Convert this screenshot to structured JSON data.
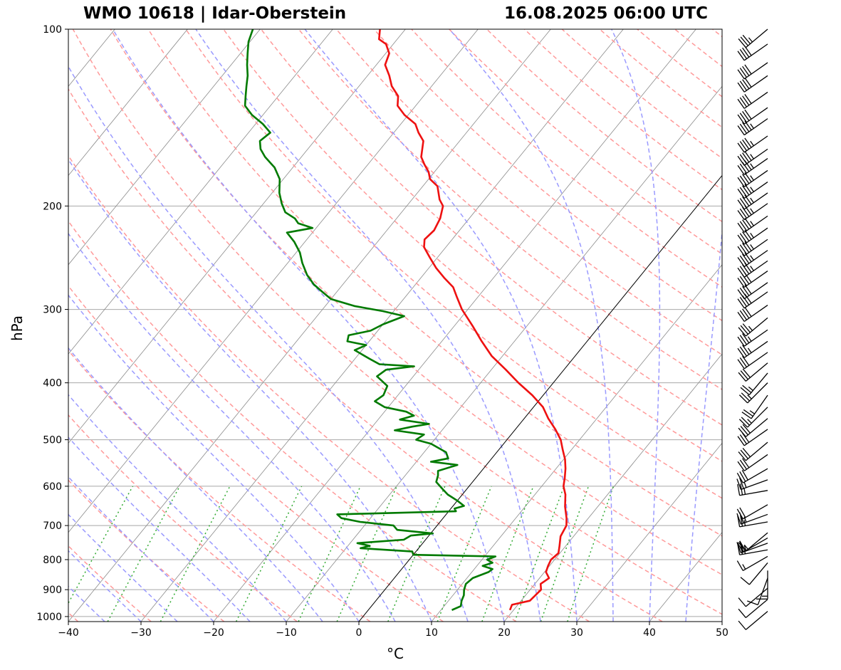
{
  "header": {
    "station": "WMO 10618 | Idar-Oberstein",
    "time": "16.08.2025 06:00 UTC"
  },
  "colors": {
    "temperature": "#ee1111",
    "dewpoint": "#007a00",
    "dry_adiabat": "#ff9a9a",
    "moist_adiabat": "#9a9aff",
    "mixing_ratio": "#33aa33",
    "isotherm": "#8a8a8a",
    "grid": "#a8a8a8"
  },
  "chart_data": {
    "type": "skew-t",
    "xlabel": "°C",
    "ylabel": "hPa",
    "xlim": [
      -40,
      50
    ],
    "ylim": [
      1020,
      100
    ],
    "y_scale": "log",
    "x_ticks": [
      "−40",
      "−30",
      "−20",
      "−10",
      "0",
      "10",
      "20",
      "30",
      "40",
      "50"
    ],
    "y_ticks": [
      "100",
      "200",
      "300",
      "400",
      "500",
      "600",
      "700",
      "800",
      "900",
      "1000"
    ],
    "grid": true,
    "highlighted_isotherm_c": 0,
    "temperature_profile": [
      [
        975,
        19.5
      ],
      [
        955,
        19.2
      ],
      [
        940,
        21.2
      ],
      [
        900,
        21.5
      ],
      [
        880,
        20.8
      ],
      [
        860,
        21.3
      ],
      [
        840,
        20.2
      ],
      [
        820,
        19.8
      ],
      [
        800,
        19.5
      ],
      [
        780,
        19.8
      ],
      [
        760,
        19.2
      ],
      [
        730,
        18.2
      ],
      [
        700,
        17.8
      ],
      [
        680,
        17.0
      ],
      [
        650,
        15.5
      ],
      [
        620,
        14.2
      ],
      [
        600,
        13.0
      ],
      [
        580,
        12.2
      ],
      [
        560,
        11.3
      ],
      [
        540,
        10.2
      ],
      [
        520,
        8.8
      ],
      [
        500,
        7.4
      ],
      [
        480,
        5.5
      ],
      [
        460,
        3.3
      ],
      [
        440,
        1.3
      ],
      [
        420,
        -1.5
      ],
      [
        400,
        -4.8
      ],
      [
        380,
        -8.0
      ],
      [
        360,
        -11.5
      ],
      [
        340,
        -14.5
      ],
      [
        320,
        -17.5
      ],
      [
        300,
        -20.8
      ],
      [
        285,
        -23.0
      ],
      [
        275,
        -24.5
      ],
      [
        265,
        -26.8
      ],
      [
        255,
        -29.0
      ],
      [
        245,
        -31.0
      ],
      [
        235,
        -33.0
      ],
      [
        228,
        -33.8
      ],
      [
        220,
        -33.5
      ],
      [
        210,
        -34.0
      ],
      [
        200,
        -35.0
      ],
      [
        195,
        -36.2
      ],
      [
        185,
        -38.0
      ],
      [
        180,
        -39.8
      ],
      [
        175,
        -40.8
      ],
      [
        170,
        -42.2
      ],
      [
        165,
        -43.5
      ],
      [
        155,
        -45.0
      ],
      [
        150,
        -46.6
      ],
      [
        145,
        -48.0
      ],
      [
        140,
        -50.5
      ],
      [
        135,
        -52.5
      ],
      [
        130,
        -53.5
      ],
      [
        125,
        -55.5
      ],
      [
        120,
        -57.0
      ],
      [
        115,
        -58.8
      ],
      [
        110,
        -59.5
      ],
      [
        106,
        -61.0
      ],
      [
        104,
        -62.5
      ],
      [
        100,
        -63.5
      ]
    ],
    "dewpoint_profile": [
      [
        975,
        11.5
      ],
      [
        960,
        12.3
      ],
      [
        940,
        11.8
      ],
      [
        920,
        11.5
      ],
      [
        900,
        10.9
      ],
      [
        880,
        10.5
      ],
      [
        860,
        10.8
      ],
      [
        840,
        12.3
      ],
      [
        830,
        12.5
      ],
      [
        820,
        10.8
      ],
      [
        810,
        11.8
      ],
      [
        800,
        10.7
      ],
      [
        790,
        11.5
      ],
      [
        785,
        0.0
      ],
      [
        775,
        -0.5
      ],
      [
        765,
        -8.0
      ],
      [
        758,
        -7.0
      ],
      [
        750,
        -9.0
      ],
      [
        740,
        -3.0
      ],
      [
        728,
        -2.5
      ],
      [
        722,
        0.3
      ],
      [
        712,
        -5.0
      ],
      [
        700,
        -6.0
      ],
      [
        690,
        -11.0
      ],
      [
        680,
        -14.0
      ],
      [
        670,
        -15.0
      ],
      [
        662,
        1.0
      ],
      [
        655,
        0.5
      ],
      [
        648,
        1.5
      ],
      [
        635,
        0.0
      ],
      [
        620,
        -2.0
      ],
      [
        605,
        -3.5
      ],
      [
        590,
        -5.0
      ],
      [
        575,
        -5.5
      ],
      [
        565,
        -6.0
      ],
      [
        552,
        -4.0
      ],
      [
        545,
        -8.0
      ],
      [
        538,
        -6.0
      ],
      [
        525,
        -7.0
      ],
      [
        508,
        -10.0
      ],
      [
        500,
        -12.5
      ],
      [
        490,
        -12.0
      ],
      [
        482,
        -16.5
      ],
      [
        475,
        -14.5
      ],
      [
        470,
        -12.5
      ],
      [
        462,
        -17.0
      ],
      [
        455,
        -15.5
      ],
      [
        448,
        -17.0
      ],
      [
        440,
        -20.5
      ],
      [
        430,
        -22.5
      ],
      [
        420,
        -22.0
      ],
      [
        405,
        -22.5
      ],
      [
        390,
        -25.0
      ],
      [
        380,
        -24.5
      ],
      [
        375,
        -21.0
      ],
      [
        372,
        -26.0
      ],
      [
        364,
        -28.0
      ],
      [
        352,
        -31.0
      ],
      [
        345,
        -30.0
      ],
      [
        340,
        -33.0
      ],
      [
        332,
        -33.5
      ],
      [
        326,
        -31.0
      ],
      [
        318,
        -30.0
      ],
      [
        308,
        -28.0
      ],
      [
        302,
        -31.5
      ],
      [
        296,
        -36.0
      ],
      [
        288,
        -40.0
      ],
      [
        280,
        -42.0
      ],
      [
        272,
        -44.0
      ],
      [
        262,
        -46.0
      ],
      [
        250,
        -48.0
      ],
      [
        240,
        -49.5
      ],
      [
        230,
        -51.5
      ],
      [
        222,
        -53.5
      ],
      [
        218,
        -50.5
      ],
      [
        214,
        -53.0
      ],
      [
        210,
        -54.0
      ],
      [
        205,
        -56.0
      ],
      [
        198,
        -57.5
      ],
      [
        190,
        -59.0
      ],
      [
        180,
        -60.5
      ],
      [
        172,
        -62.5
      ],
      [
        165,
        -65.0
      ],
      [
        160,
        -66.5
      ],
      [
        155,
        -67.5
      ],
      [
        150,
        -67.0
      ],
      [
        145,
        -69.0
      ],
      [
        140,
        -71.5
      ],
      [
        135,
        -73.5
      ],
      [
        130,
        -74.5
      ],
      [
        125,
        -75.5
      ],
      [
        120,
        -76.5
      ],
      [
        115,
        -77.8
      ],
      [
        110,
        -79.0
      ],
      [
        105,
        -80.2
      ],
      [
        100,
        -81.0
      ]
    ],
    "wind_barbs": [
      [
        980,
        230,
        10
      ],
      [
        935,
        230,
        10
      ],
      [
        895,
        230,
        10
      ],
      [
        860,
        200,
        12
      ],
      [
        835,
        180,
        15
      ],
      [
        810,
        220,
        12
      ],
      [
        790,
        240,
        15
      ],
      [
        770,
        260,
        25
      ],
      [
        750,
        250,
        25
      ],
      [
        735,
        240,
        20
      ],
      [
        720,
        230,
        15
      ],
      [
        690,
        260,
        25
      ],
      [
        670,
        250,
        25
      ],
      [
        645,
        240,
        20
      ],
      [
        610,
        260,
        25
      ],
      [
        585,
        250,
        25
      ],
      [
        560,
        240,
        30
      ],
      [
        530,
        235,
        30
      ],
      [
        505,
        230,
        30
      ],
      [
        480,
        235,
        30
      ],
      [
        460,
        230,
        30
      ],
      [
        440,
        225,
        25
      ],
      [
        420,
        215,
        25
      ],
      [
        400,
        225,
        25
      ],
      [
        385,
        220,
        25
      ],
      [
        370,
        230,
        30
      ],
      [
        355,
        235,
        30
      ],
      [
        340,
        235,
        35
      ],
      [
        325,
        235,
        35
      ],
      [
        310,
        230,
        35
      ],
      [
        295,
        235,
        40
      ],
      [
        280,
        235,
        40
      ],
      [
        270,
        235,
        40
      ],
      [
        258,
        235,
        40
      ],
      [
        248,
        235,
        45
      ],
      [
        238,
        235,
        45
      ],
      [
        228,
        235,
        45
      ],
      [
        218,
        235,
        45
      ],
      [
        208,
        235,
        45
      ],
      [
        198,
        235,
        45
      ],
      [
        190,
        235,
        45
      ],
      [
        182,
        235,
        45
      ],
      [
        174,
        235,
        45
      ],
      [
        166,
        235,
        45
      ],
      [
        160,
        235,
        45
      ],
      [
        152,
        235,
        45
      ],
      [
        142,
        235,
        45
      ],
      [
        136,
        235,
        40
      ],
      [
        128,
        235,
        40
      ],
      [
        120,
        235,
        40
      ],
      [
        114,
        235,
        40
      ],
      [
        106,
        235,
        40
      ],
      [
        100,
        230,
        35
      ]
    ]
  }
}
